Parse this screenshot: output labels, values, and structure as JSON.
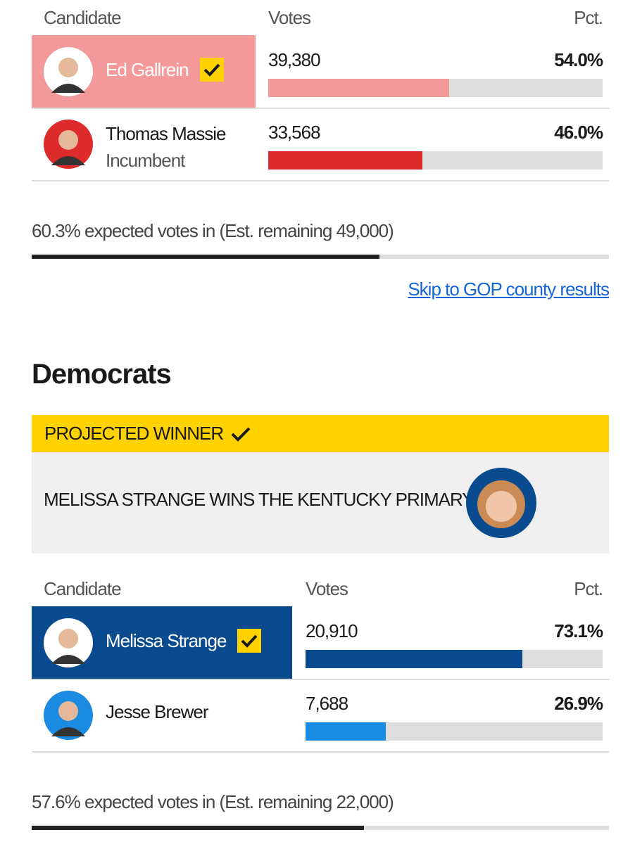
{
  "gop": {
    "header": {
      "candidate": "Candidate",
      "votes": "Votes",
      "pct": "Pct."
    },
    "candidates": [
      {
        "name": "Ed Gallrein",
        "votes": "39,380",
        "pct": 54.0,
        "pct_label": "54.0%",
        "winner": true,
        "color": "#f4999a"
      },
      {
        "name": "Thomas Massie",
        "note": "Incumbent",
        "votes": "33,568",
        "pct": 46.0,
        "pct_label": "46.0%",
        "winner": false,
        "color": "#dd2a2a"
      }
    ],
    "reporting": {
      "text": "60.3% expected votes in (Est. remaining 49,000)",
      "pct": 60.3
    },
    "link": "Skip to GOP county results"
  },
  "democrats": {
    "heading": "Democrats",
    "banner": {
      "label": "PROJECTED WINNER",
      "headline": "MELISSA STRANGE WINS THE KENTUCKY PRIMARY"
    },
    "header": {
      "candidate": "Candidate",
      "votes": "Votes",
      "pct": "Pct."
    },
    "candidates": [
      {
        "name": "Melissa Strange",
        "votes": "20,910",
        "pct": 73.1,
        "pct_label": "73.1%",
        "winner": true,
        "color": "#0a4a8f"
      },
      {
        "name": "Jesse Brewer",
        "votes": "7,688",
        "pct": 26.9,
        "pct_label": "26.9%",
        "winner": false,
        "color": "#1a8be0"
      }
    ],
    "reporting": {
      "text": "57.6% expected votes in (Est. remaining 22,000)",
      "pct": 57.6
    }
  }
}
